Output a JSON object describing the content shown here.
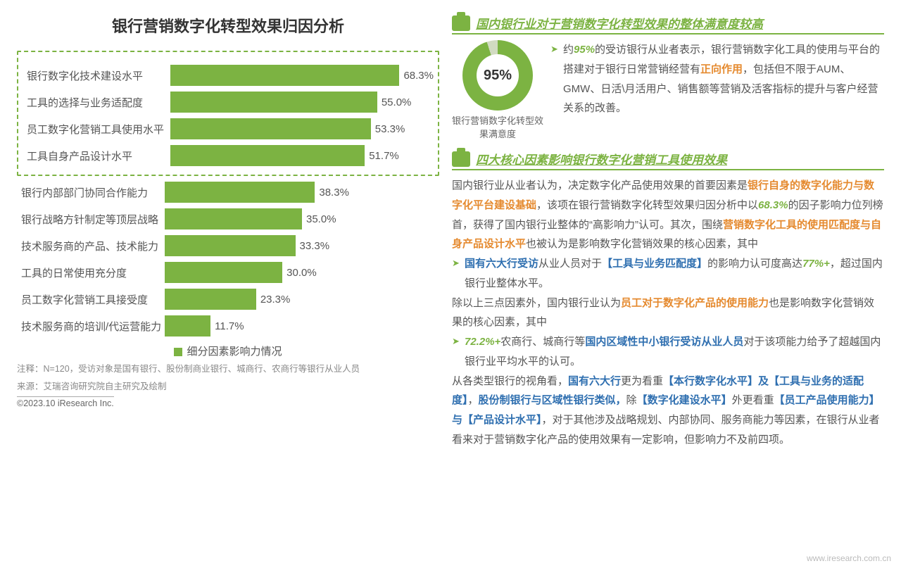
{
  "colors": {
    "primary_green": "#7cb342",
    "dim_green": "#a8c97d",
    "donut_bg": "#d1dbc1",
    "orange": "#e58a2f",
    "blue": "#2f6fb0",
    "text": "#555555",
    "title": "#333333"
  },
  "chart": {
    "title": "银行营销数字化转型效果归因分析",
    "type": "bar",
    "max_value": 70,
    "bar_color_strong": "#7cb342",
    "bar_color_dim": "#a8c97d",
    "bars_top": [
      {
        "label": "银行数字化技术建设水平",
        "value": 68.3,
        "text": "68.3%"
      },
      {
        "label": "工具的选择与业务适配度",
        "value": 55.0,
        "text": "55.0%"
      },
      {
        "label": "员工数字化营销工具使用水平",
        "value": 53.3,
        "text": "53.3%"
      },
      {
        "label": "工具自身产品设计水平",
        "value": 51.7,
        "text": "51.7%"
      }
    ],
    "bars_rest": [
      {
        "label": "银行内部部门协同合作能力",
        "value": 38.3,
        "text": "38.3%"
      },
      {
        "label": "银行战略方针制定等顶层战略",
        "value": 35.0,
        "text": "35.0%"
      },
      {
        "label": "技术服务商的产品、技术能力",
        "value": 33.3,
        "text": "33.3%"
      },
      {
        "label": "工具的日常使用充分度",
        "value": 30.0,
        "text": "30.0%"
      },
      {
        "label": "员工数字化营销工具接受度",
        "value": 23.3,
        "text": "23.3%"
      },
      {
        "label": "技术服务商的培训/代运营能力",
        "value": 11.7,
        "text": "11.7%"
      }
    ],
    "legend": "细分因素影响力情况",
    "footnote1": "注释：N=120，受访对象是国有银行、股份制商业银行、城商行、农商行等银行从业人员",
    "footnote2": "来源：艾瑞咨询研究院自主研究及绘制",
    "copyright": "©2023.10 iResearch Inc."
  },
  "right": {
    "section1_title": "国内银行业对于营销数字化转型效果的整体满意度较高",
    "donut": {
      "percent": 95,
      "label": "95%",
      "fill": "#7cb342",
      "track": "#d1dbc1",
      "caption": "银行营销数字化转型效果满意度"
    },
    "s1_pre": "约",
    "s1_pct": "95%",
    "s1_mid": "的受访银行从业者表示，银行营销数字化工具的使用与平台的搭建对于银行日常营销经营有",
    "s1_orange": "正向作用",
    "s1_post": "，包括但不限于AUM、GMW、日活\\月活用户、销售额等营销及活客指标的提升与客户经营关系的改善。",
    "section2_title": "四大核心因素影响银行数字化营销工具使用效果",
    "p2a": "国内银行业从业者认为，决定数字化产品使用效果的首要因素是",
    "p2a_orange": "银行自身的数字化能力与数字化平台建设基础",
    "p2b": "，该项在银行营销数字化转型效果归因分析中以",
    "p2b_green": "68.3%",
    "p2c": "的因子影响力位列榜首，获得了国内银行业整体的“高影响力”认可。其次，围绕",
    "p2c_orange": "营销数字化工具的使用匹配度与自身产品设计水平",
    "p2d": "也被认为是影响数字化营销效果的核心因素，其中",
    "b1a": "国有六大行受访",
    "b1b": "从业人员对于",
    "b1c": "【工具与业务匹配度】",
    "b1d": "的影响力认可度高达",
    "b1e": "77%+",
    "b1f": "，超过国内银行业整体水平。",
    "p3a": "除以上三点因素外，国内银行业认为",
    "p3a_orange": "员工对于数字化产品的使用能力",
    "p3b": "也是影响数字化营销效果的核心因素，其中",
    "b2a": "72.2%+",
    "b2b": "农商行、城商行等",
    "b2c": "国内区域性中小银行受访从业人员",
    "b2d": "对于该项能力给予了超越国内银行业平均水平的认可。",
    "p4a": "从各类型银行的视角看，",
    "p4b": "国有六大行",
    "p4c": "更为看重",
    "p4d": "【本行数字化水平】及【工具与业务的适配度】",
    "p4e": "，",
    "p4f": "股份制银行与区域性银行类似，",
    "p4g": "除",
    "p4h": "【数字化建设水平】",
    "p4i": "外更看重",
    "p4j": "【员工产品使用能力】与【产品设计水平】",
    "p4k": "，对于其他涉及战略规划、内部协同、服务商能力等因素，在银行从业者看来对于营销数字化产品的使用效果有一定影响，但影响力不及前四项。"
  },
  "watermark": "www.iresearch.com.cn"
}
